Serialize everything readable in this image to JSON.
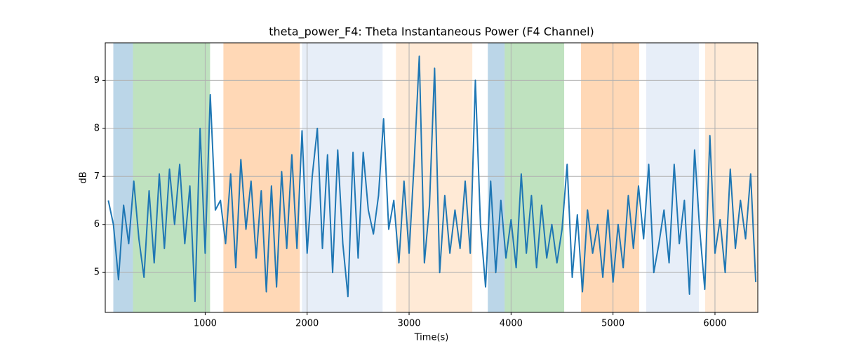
{
  "chart_data": {
    "type": "line",
    "title": "theta_power_F4: Theta Instantaneous Power (F4 Channel)",
    "xlabel": "Time(s)",
    "ylabel": "dB",
    "color": "#1f77b4",
    "grid": true,
    "xlim": [
      20,
      6420
    ],
    "ylim": [
      4.17,
      9.78
    ],
    "xticks": [
      1000,
      2000,
      3000,
      4000,
      5000,
      6000
    ],
    "yticks": [
      5,
      6,
      7,
      8,
      9
    ],
    "spans": [
      {
        "start": 99,
        "end": 292,
        "color": "#1f77b4",
        "alpha": 0.3
      },
      {
        "start": 292,
        "end": 1048,
        "color": "#2ca02c",
        "alpha": 0.3
      },
      {
        "start": 1179,
        "end": 1928,
        "color": "#ff7f0e",
        "alpha": 0.3
      },
      {
        "start": 1949,
        "end": 2740,
        "color": "#aec7e8",
        "alpha": 0.3
      },
      {
        "start": 2871,
        "end": 3620,
        "color": "#ffbb78",
        "alpha": 0.3
      },
      {
        "start": 3772,
        "end": 3937,
        "color": "#1f77b4",
        "alpha": 0.3
      },
      {
        "start": 3937,
        "end": 4521,
        "color": "#2ca02c",
        "alpha": 0.3
      },
      {
        "start": 4686,
        "end": 5257,
        "color": "#ff7f0e",
        "alpha": 0.3
      },
      {
        "start": 5326,
        "end": 5842,
        "color": "#aec7e8",
        "alpha": 0.3
      },
      {
        "start": 5904,
        "end": 6420,
        "color": "#ffbb78",
        "alpha": 0.3
      }
    ],
    "x": [
      50,
      100,
      150,
      200,
      250,
      300,
      350,
      400,
      450,
      500,
      550,
      600,
      650,
      700,
      750,
      800,
      850,
      900,
      950,
      1000,
      1050,
      1100,
      1150,
      1200,
      1250,
      1300,
      1350,
      1400,
      1450,
      1500,
      1550,
      1600,
      1650,
      1700,
      1750,
      1800,
      1850,
      1900,
      1950,
      2000,
      2050,
      2100,
      2150,
      2200,
      2250,
      2300,
      2350,
      2400,
      2450,
      2500,
      2550,
      2600,
      2650,
      2700,
      2750,
      2800,
      2850,
      2900,
      2950,
      3000,
      3050,
      3100,
      3150,
      3200,
      3250,
      3300,
      3350,
      3400,
      3450,
      3500,
      3550,
      3600,
      3650,
      3700,
      3750,
      3800,
      3850,
      3900,
      3950,
      4000,
      4050,
      4100,
      4150,
      4200,
      4250,
      4300,
      4350,
      4400,
      4450,
      4500,
      4550,
      4600,
      4650,
      4700,
      4750,
      4800,
      4850,
      4900,
      4950,
      5000,
      5050,
      5100,
      5150,
      5200,
      5250,
      5300,
      5350,
      5400,
      5450,
      5500,
      5550,
      5600,
      5650,
      5700,
      5750,
      5800,
      5850,
      5900,
      5950,
      6000,
      6050,
      6100,
      6150,
      6200,
      6250,
      6300,
      6350,
      6400
    ],
    "values": [
      6.5,
      6.0,
      4.85,
      6.4,
      5.6,
      6.9,
      5.7,
      4.9,
      6.7,
      5.2,
      7.05,
      5.5,
      7.15,
      6.0,
      7.25,
      5.6,
      6.8,
      4.4,
      8.0,
      5.4,
      8.7,
      6.3,
      6.5,
      5.6,
      7.05,
      5.1,
      7.35,
      5.9,
      6.9,
      5.3,
      6.7,
      4.6,
      6.8,
      4.7,
      7.1,
      5.5,
      7.45,
      5.5,
      7.95,
      5.4,
      7.0,
      8.0,
      5.5,
      7.45,
      5.0,
      7.55,
      5.6,
      4.5,
      7.5,
      5.3,
      7.5,
      6.3,
      5.8,
      6.6,
      8.2,
      5.9,
      6.5,
      5.2,
      6.9,
      5.4,
      7.3,
      9.5,
      5.2,
      6.4,
      9.25,
      5.0,
      6.6,
      5.4,
      6.3,
      5.5,
      6.9,
      5.4,
      9.0,
      6.0,
      4.7,
      6.9,
      5.0,
      6.5,
      5.3,
      6.1,
      5.1,
      7.05,
      5.4,
      6.6,
      5.1,
      6.4,
      5.3,
      6.0,
      5.2,
      5.9,
      7.25,
      4.9,
      6.2,
      4.6,
      6.3,
      5.4,
      6.0,
      4.9,
      6.3,
      4.8,
      6.0,
      5.1,
      6.6,
      5.5,
      6.8,
      5.7,
      7.25,
      5.0,
      5.6,
      6.3,
      5.2,
      7.25,
      5.6,
      6.5,
      4.55,
      7.55,
      5.9,
      4.65,
      7.85,
      5.4,
      6.1,
      5.0,
      7.15,
      5.5,
      6.5,
      5.7,
      7.05,
      4.8
    ]
  }
}
